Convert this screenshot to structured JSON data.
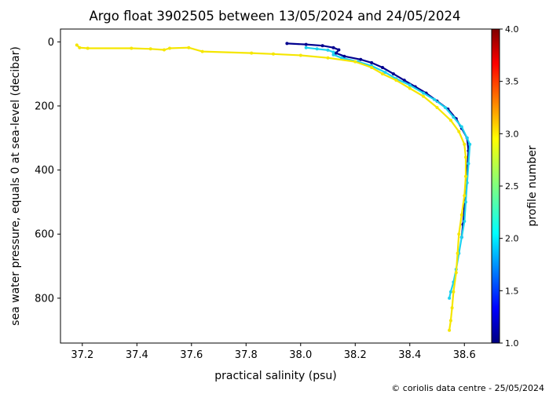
{
  "chart_data": {
    "type": "scatter",
    "title": "Argo float 3902505 between 13/05/2024 and 24/05/2024",
    "xlabel": "practical salinity (psu)",
    "ylabel": "sea water pressure, equals 0 at sea-level (decibar)",
    "xlim": [
      37.12,
      38.7
    ],
    "ylim": [
      940,
      -40
    ],
    "y_inverted": true,
    "xticks": [
      37.2,
      37.4,
      37.6,
      37.8,
      38.0,
      38.2,
      38.4,
      38.6
    ],
    "xtick_labels": [
      "37.2",
      "37.4",
      "37.6",
      "37.8",
      "38.0",
      "38.2",
      "38.4",
      "38.6"
    ],
    "yticks": [
      0,
      200,
      400,
      600,
      800
    ],
    "ytick_labels": [
      "0",
      "200",
      "400",
      "600",
      "800"
    ],
    "colorbar": {
      "label": "profile number",
      "range": [
        1.0,
        4.0
      ],
      "ticks": [
        1.0,
        1.5,
        2.0,
        2.5,
        3.0,
        3.5,
        4.0
      ],
      "tick_labels": [
        "1.0",
        "1.5",
        "2.0",
        "2.5",
        "3.0",
        "3.5",
        "4.0"
      ],
      "colormap": "jet"
    },
    "grid": false,
    "series": [
      {
        "profile": 1,
        "color": "#00008f",
        "points": [
          [
            37.95,
            5
          ],
          [
            38.02,
            8
          ],
          [
            38.08,
            12
          ],
          [
            38.12,
            18
          ],
          [
            38.14,
            25
          ],
          [
            38.13,
            35
          ],
          [
            38.16,
            45
          ],
          [
            38.22,
            55
          ],
          [
            38.26,
            65
          ],
          [
            38.3,
            80
          ],
          [
            38.34,
            100
          ],
          [
            38.38,
            120
          ],
          [
            38.42,
            140
          ],
          [
            38.46,
            160
          ],
          [
            38.5,
            185
          ],
          [
            38.54,
            210
          ],
          [
            38.57,
            240
          ],
          [
            38.59,
            270
          ],
          [
            38.61,
            300
          ],
          [
            38.615,
            340
          ],
          [
            38.61,
            400
          ],
          [
            38.605,
            460
          ],
          [
            38.6,
            520
          ],
          [
            38.595,
            570
          ],
          [
            38.59,
            610
          ]
        ]
      },
      {
        "profile": 2,
        "color": "#1ed2ee",
        "points": [
          [
            38.02,
            18
          ],
          [
            38.06,
            22
          ],
          [
            38.1,
            26
          ],
          [
            38.12,
            32
          ],
          [
            38.12,
            40
          ],
          [
            38.15,
            50
          ],
          [
            38.21,
            62
          ],
          [
            38.26,
            75
          ],
          [
            38.31,
            95
          ],
          [
            38.35,
            115
          ],
          [
            38.4,
            135
          ],
          [
            38.45,
            160
          ],
          [
            38.49,
            180
          ],
          [
            38.53,
            205
          ],
          [
            38.56,
            235
          ],
          [
            38.59,
            265
          ],
          [
            38.61,
            300
          ],
          [
            38.62,
            320
          ],
          [
            38.615,
            380
          ],
          [
            38.61,
            440
          ],
          [
            38.605,
            500
          ],
          [
            38.6,
            560
          ],
          [
            38.59,
            610
          ],
          [
            38.58,
            660
          ],
          [
            38.57,
            710
          ],
          [
            38.56,
            750
          ],
          [
            38.55,
            780
          ],
          [
            38.545,
            800
          ]
        ]
      },
      {
        "profile": 3,
        "color": "#f5e600",
        "points": [
          [
            37.18,
            10
          ],
          [
            37.19,
            18
          ],
          [
            37.22,
            20
          ],
          [
            37.38,
            20
          ],
          [
            37.45,
            22
          ],
          [
            37.5,
            25
          ],
          [
            37.52,
            20
          ],
          [
            37.59,
            18
          ],
          [
            37.64,
            30
          ],
          [
            37.82,
            35
          ],
          [
            37.9,
            38
          ],
          [
            38.0,
            42
          ],
          [
            38.1,
            50
          ],
          [
            38.2,
            62
          ],
          [
            38.26,
            80
          ],
          [
            38.3,
            100
          ],
          [
            38.35,
            120
          ],
          [
            38.4,
            145
          ],
          [
            38.45,
            170
          ],
          [
            38.5,
            205
          ],
          [
            38.55,
            245
          ],
          [
            38.58,
            280
          ],
          [
            38.6,
            320
          ],
          [
            38.605,
            360
          ],
          [
            38.605,
            420
          ],
          [
            38.6,
            480
          ],
          [
            38.59,
            540
          ],
          [
            38.58,
            600
          ],
          [
            38.575,
            660
          ],
          [
            38.57,
            720
          ],
          [
            38.56,
            780
          ],
          [
            38.555,
            830
          ],
          [
            38.55,
            870
          ],
          [
            38.545,
            900
          ]
        ]
      }
    ]
  },
  "credit": "© coriolis data centre - 25/05/2024"
}
